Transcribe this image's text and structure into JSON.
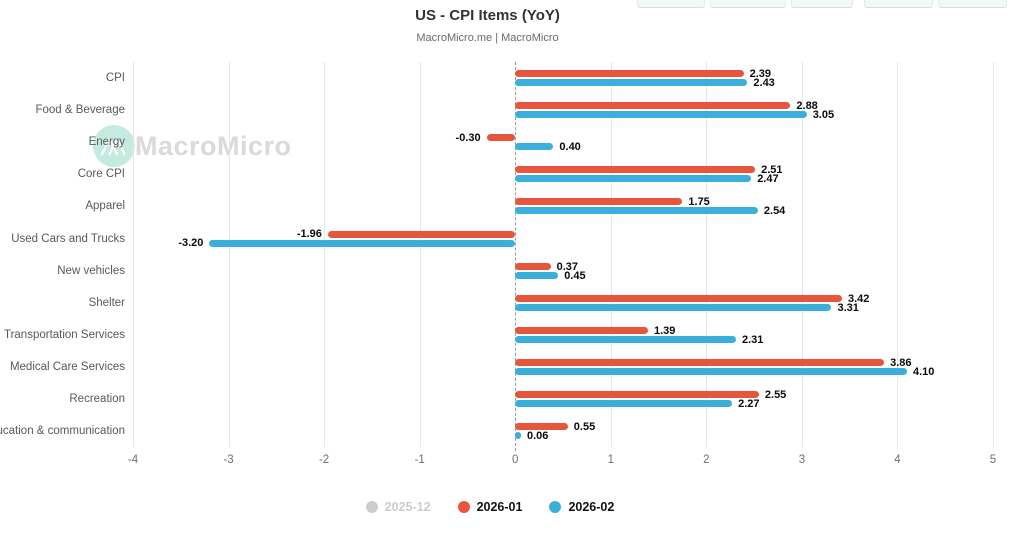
{
  "header": {
    "title": "US - CPI Items (YoY)",
    "subtitle": "MacroMicro.me | MacroMicro"
  },
  "watermark": {
    "text": "MacroMicro"
  },
  "chart_data": {
    "type": "bar",
    "orientation": "horizontal",
    "title": "US - CPI Items (YoY)",
    "subtitle": "MacroMicro.me | MacroMicro",
    "categories": [
      "CPI",
      "Food & Beverage",
      "Energy",
      "Core CPI",
      "Apparel",
      "Used Cars and Trucks",
      "New vehicles",
      "Shelter",
      "Transportation Services",
      "Medical Care Services",
      "Recreation",
      "Education & communication"
    ],
    "series": [
      {
        "name": "2025-12",
        "color": "#cccccc",
        "active": false,
        "values": []
      },
      {
        "name": "2026-01",
        "color": "#e6553c",
        "active": true,
        "values": [
          2.39,
          2.88,
          -0.3,
          2.51,
          1.75,
          -1.96,
          0.37,
          3.42,
          1.39,
          3.86,
          2.55,
          0.55
        ]
      },
      {
        "name": "2026-02",
        "color": "#3bafdb",
        "active": true,
        "values": [
          2.43,
          3.05,
          0.4,
          2.47,
          2.54,
          -3.2,
          0.45,
          3.31,
          2.31,
          4.1,
          2.27,
          0.06
        ]
      }
    ],
    "xlim": [
      -4,
      5
    ],
    "x_ticks": [
      -4,
      -3,
      -2,
      -1,
      0,
      1,
      2,
      3,
      4,
      5
    ],
    "grid": true,
    "zero_line": "dashed",
    "value_labels": true,
    "value_label_decimals": 2,
    "legend_position": "bottom",
    "colors": {
      "grid": "#e7e7e7",
      "axis_text": "#707070",
      "category_text": "#595959",
      "value_text": "#0a0a0a"
    }
  }
}
